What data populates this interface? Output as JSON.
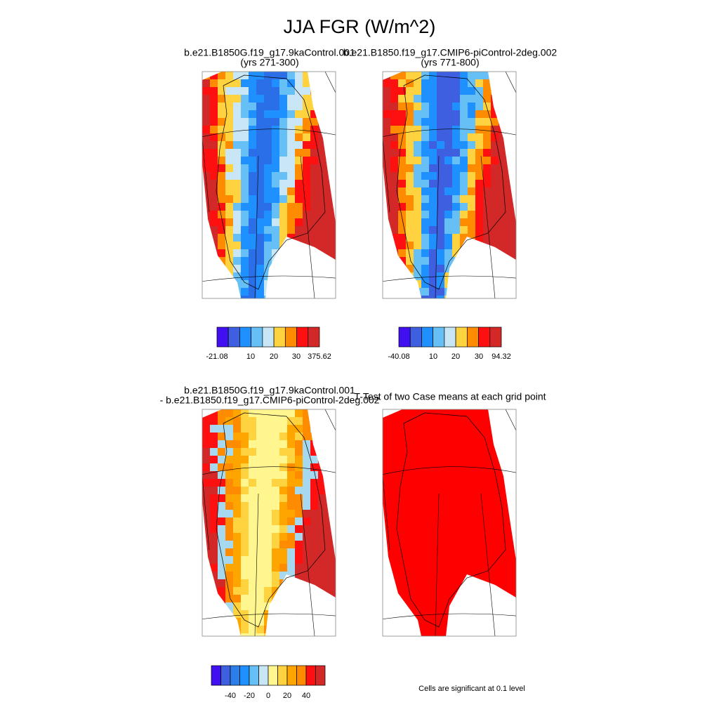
{
  "title": "JJA FGR (W/m^2)",
  "panels": [
    {
      "title_lines": [
        "b.e21.B1850G.f19_g17.9kaControl.001",
        "(yrs 271-300)"
      ]
    },
    {
      "title_lines": [
        "b.e21.B1850.f19_g17.CMIP6-piControl-2deg.002",
        "(yrs 771-800)"
      ]
    },
    {
      "title_lines": [
        "b.e21.B1850G.f19_g17.9kaControl.001",
        "- b.e21.B1850.f19_g17.CMIP6-piControl-2deg.002"
      ]
    },
    {
      "title_lines": [
        "T-Test of two Case means at each grid point"
      ]
    }
  ],
  "colorbars": [
    {
      "labels": [
        "-21.08",
        "10",
        "20",
        "30",
        "375.62"
      ]
    },
    {
      "labels": [
        "-40.08",
        "10",
        "20",
        "30",
        "94.32"
      ]
    },
    {
      "labels": [
        "-40",
        "-20",
        "0",
        "20",
        "40"
      ]
    }
  ],
  "note": "Cells are significant at 0.1 level"
}
